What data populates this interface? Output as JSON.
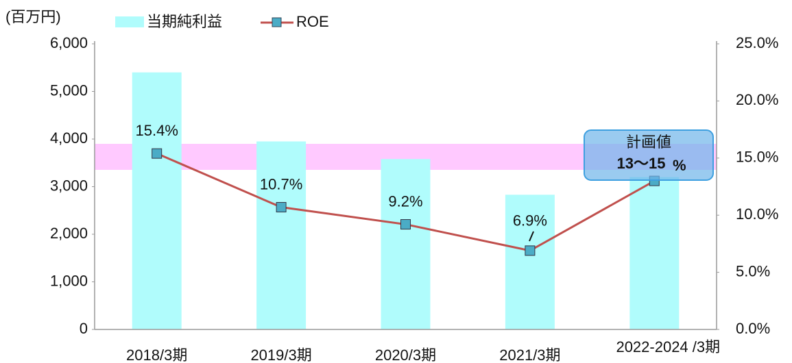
{
  "chart_data": {
    "type": "bar_line",
    "unit_label": "(百万円)",
    "categories": [
      "2018/3期",
      "2019/3期",
      "2020/3期",
      "2021/3期",
      "2022-2024 /3期"
    ],
    "series": [
      {
        "name": "当期純利益",
        "color": "#b0fcfc",
        "values": [
          5400,
          3950,
          3580,
          2830,
          3200
        ]
      },
      {
        "name": "ROE",
        "color": "#c0504d",
        "marker_color": "#4bacc6",
        "axis": "y2",
        "values": [
          15.4,
          10.7,
          9.2,
          6.9,
          13
        ],
        "value_labels": [
          "15.4%",
          "10.7%",
          "9.2%",
          "6.9%",
          null
        ]
      }
    ],
    "ylim": [
      0,
      6000
    ],
    "yticks": [
      0,
      {
        "value": 1000,
        "label": "1,000"
      },
      {
        "value": 2000,
        "label": "2,000"
      },
      {
        "value": 3000,
        "label": "3,000"
      },
      {
        "value": 4000,
        "label": "4,000"
      },
      {
        "value": 5000,
        "label": "5,000"
      },
      {
        "value": 6000,
        "label": "6,000"
      }
    ],
    "y2lim": [
      0,
      25
    ],
    "y2ticks": [
      {
        "value": 0,
        "label": "0.0%"
      },
      {
        "value": 5,
        "label": "5.0%"
      },
      {
        "value": 10,
        "label": "10.0%"
      },
      {
        "value": 15,
        "label": "15.0%"
      },
      {
        "value": 20,
        "label": "20.0%"
      },
      {
        "value": 25,
        "label": "25.0%"
      }
    ],
    "annotation": {
      "title": "計画値",
      "value": "13〜15",
      "unit": "%"
    }
  }
}
